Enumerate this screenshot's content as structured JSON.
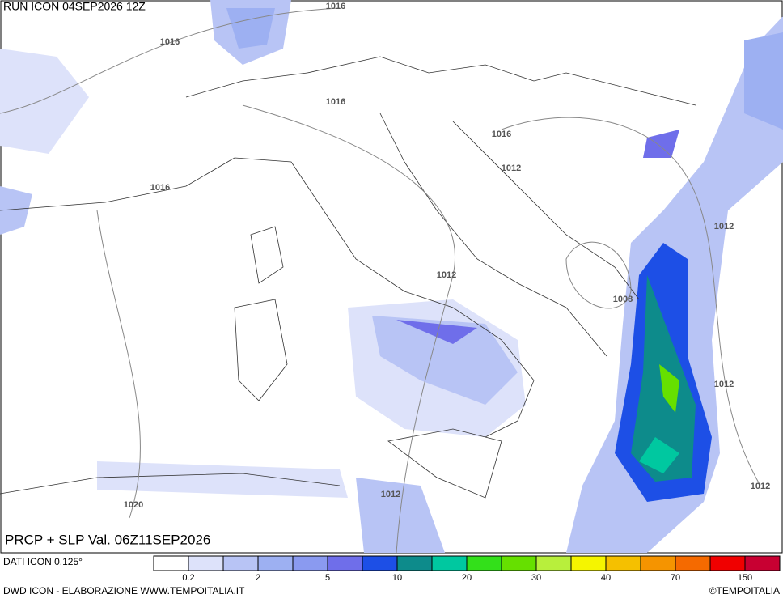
{
  "header": {
    "run": "RUN ICON 04SEP2026 12Z",
    "title": "PRCP + SLP Val. 06Z11SEP2026"
  },
  "isobars": [
    "1016",
    "1016",
    "1016",
    "1016",
    "1012",
    "1016",
    "1012",
    "1012",
    "1008",
    "1012",
    "1012",
    "1020",
    "1012"
  ],
  "legend": {
    "source": "DATI ICON 0.125°",
    "colors": [
      "#ffffff",
      "#dde2fa",
      "#b8c4f5",
      "#9db0f2",
      "#8a9af0",
      "#6f6eea",
      "#1d4fe6",
      "#0d8b8b",
      "#00c8a0",
      "#33e01a",
      "#66e000",
      "#b8ef3c",
      "#f5f500",
      "#f5c000",
      "#f59400",
      "#f56a00",
      "#f00000",
      "#c80032"
    ],
    "labels": [
      "0.2",
      "2",
      "5",
      "10",
      "20",
      "30",
      "40",
      "70",
      "150"
    ]
  },
  "footer": {
    "credit": "DWD ICON - ELABORAZIONE WWW.TEMPOITALIA.IT",
    "copyright": "©TEMPOITALIA"
  }
}
